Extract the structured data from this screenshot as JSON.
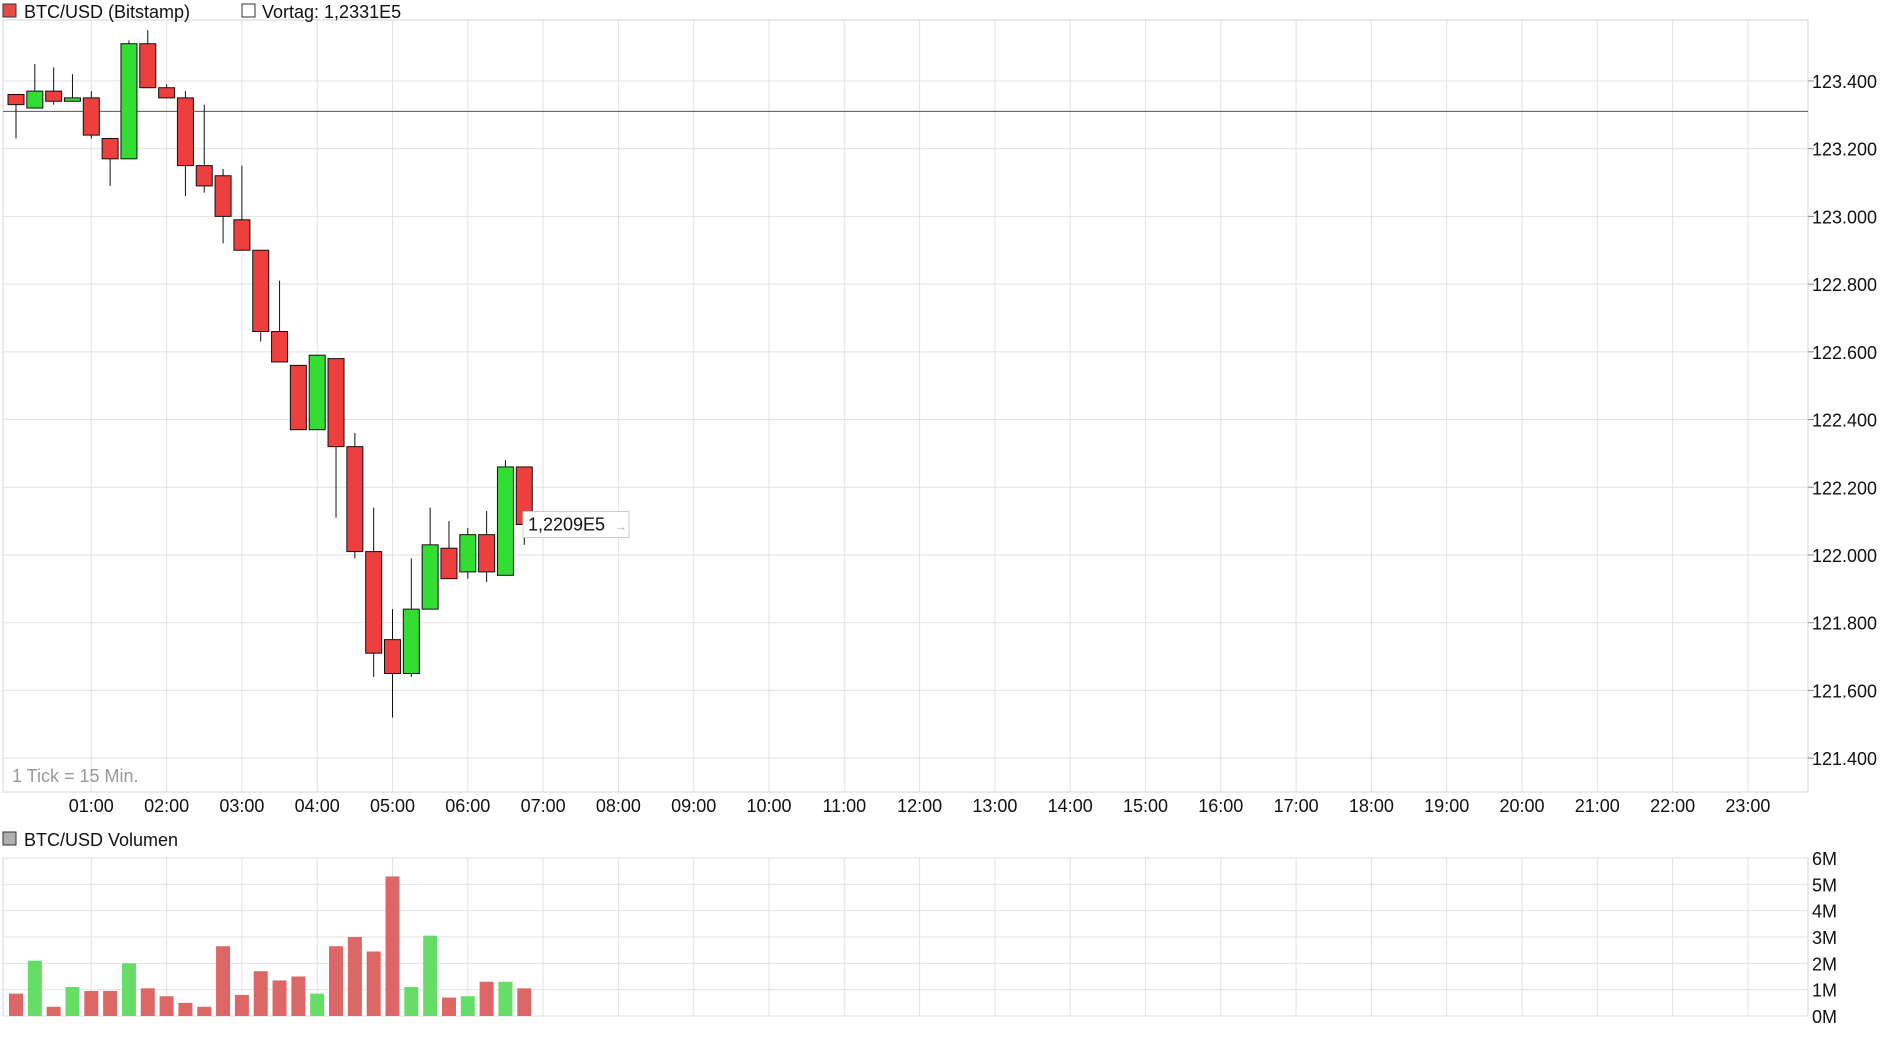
{
  "price_chart": {
    "legend_series": "BTC/USD (Bitstamp)",
    "legend_series_color": "#e84a4a",
    "legend_prev_close": "Vortag: 1,2331E5",
    "prev_close_value": 123310,
    "last_price_label": "1,2209E5",
    "last_price_value": 122090,
    "tick_note": "1 Tick = 15 Min."
  },
  "volume_chart": {
    "legend_label": "BTC/USD Volumen",
    "legend_color": "#b0b0b0"
  },
  "colors": {
    "up": "#33dd33",
    "down": "#ee3f3f",
    "vol_up": "#66dd66",
    "vol_down": "#dd6666",
    "grid": "#e2e2e2"
  },
  "chart_data": [
    {
      "type": "candlestick",
      "title": "",
      "interval": "15 min",
      "ylim": [
        121300,
        123580
      ],
      "y_ticks": [
        121400,
        121600,
        121800,
        122000,
        122200,
        122400,
        122600,
        122800,
        123000,
        123200,
        123400
      ],
      "y_tick_labels": [
        "121.400",
        "121.600",
        "121.800",
        "122.000",
        "122.200",
        "122.400",
        "122.600",
        "122.800",
        "123.000",
        "123.200",
        "123.400"
      ],
      "x_tick_labels": [
        "01:00",
        "02:00",
        "03:00",
        "04:00",
        "05:00",
        "06:00",
        "07:00",
        "08:00",
        "09:00",
        "10:00",
        "11:00",
        "12:00",
        "13:00",
        "14:00",
        "15:00",
        "16:00",
        "17:00",
        "18:00",
        "19:00",
        "20:00",
        "21:00",
        "22:00",
        "23:00"
      ],
      "x_start": "00:00",
      "x_end": "24:00",
      "candles": [
        {
          "t": "00:00",
          "open": 123360,
          "high": 123360,
          "low": 123230,
          "close": 123330
        },
        {
          "t": "00:15",
          "open": 123320,
          "high": 123450,
          "low": 123320,
          "close": 123370
        },
        {
          "t": "00:30",
          "open": 123370,
          "high": 123440,
          "low": 123330,
          "close": 123340
        },
        {
          "t": "00:45",
          "open": 123340,
          "high": 123420,
          "low": 123340,
          "close": 123350
        },
        {
          "t": "01:00",
          "open": 123350,
          "high": 123370,
          "low": 123230,
          "close": 123240
        },
        {
          "t": "01:15",
          "open": 123230,
          "high": 123230,
          "low": 123090,
          "close": 123170
        },
        {
          "t": "01:30",
          "open": 123170,
          "high": 123520,
          "low": 123170,
          "close": 123510
        },
        {
          "t": "01:45",
          "open": 123510,
          "high": 123550,
          "low": 123380,
          "close": 123380
        },
        {
          "t": "02:00",
          "open": 123380,
          "high": 123390,
          "low": 123350,
          "close": 123350
        },
        {
          "t": "02:15",
          "open": 123350,
          "high": 123370,
          "low": 123060,
          "close": 123150
        },
        {
          "t": "02:30",
          "open": 123150,
          "high": 123330,
          "low": 123070,
          "close": 123090
        },
        {
          "t": "02:45",
          "open": 123120,
          "high": 123140,
          "low": 122920,
          "close": 123000
        },
        {
          "t": "03:00",
          "open": 122990,
          "high": 123150,
          "low": 122900,
          "close": 122900
        },
        {
          "t": "03:15",
          "open": 122900,
          "high": 122900,
          "low": 122630,
          "close": 122660
        },
        {
          "t": "03:30",
          "open": 122660,
          "high": 122810,
          "low": 122570,
          "close": 122570
        },
        {
          "t": "03:45",
          "open": 122560,
          "high": 122560,
          "low": 122370,
          "close": 122370
        },
        {
          "t": "04:00",
          "open": 122370,
          "high": 122590,
          "low": 122370,
          "close": 122590
        },
        {
          "t": "04:15",
          "open": 122580,
          "high": 122580,
          "low": 122110,
          "close": 122320
        },
        {
          "t": "04:30",
          "open": 122320,
          "high": 122360,
          "low": 121990,
          "close": 122010
        },
        {
          "t": "04:45",
          "open": 122010,
          "high": 122140,
          "low": 121640,
          "close": 121710
        },
        {
          "t": "05:00",
          "open": 121750,
          "high": 121840,
          "low": 121520,
          "close": 121650
        },
        {
          "t": "05:15",
          "open": 121650,
          "high": 121990,
          "low": 121640,
          "close": 121840
        },
        {
          "t": "05:30",
          "open": 121840,
          "high": 122140,
          "low": 121840,
          "close": 122030
        },
        {
          "t": "05:45",
          "open": 122020,
          "high": 122100,
          "low": 121930,
          "close": 121930
        },
        {
          "t": "06:00",
          "open": 121950,
          "high": 122080,
          "low": 121930,
          "close": 122060
        },
        {
          "t": "06:15",
          "open": 122060,
          "high": 122130,
          "low": 121920,
          "close": 121950
        },
        {
          "t": "06:30",
          "open": 121940,
          "high": 122280,
          "low": 121940,
          "close": 122260
        },
        {
          "t": "06:45",
          "open": 122260,
          "high": 122260,
          "low": 122030,
          "close": 122090
        }
      ]
    },
    {
      "type": "bar",
      "title": "",
      "ylim": [
        0,
        6000000
      ],
      "y_ticks": [
        0,
        1000000,
        2000000,
        3000000,
        4000000,
        5000000,
        6000000
      ],
      "y_tick_labels": [
        "0M",
        "1M",
        "2M",
        "3M",
        "4M",
        "5M",
        "6M"
      ],
      "volumes": [
        0.85,
        2.1,
        0.35,
        1.1,
        0.95,
        0.95,
        2.0,
        1.05,
        0.75,
        0.5,
        0.35,
        2.65,
        0.8,
        1.7,
        1.35,
        1.5,
        0.85,
        2.65,
        3.0,
        2.45,
        5.3,
        1.1,
        3.05,
        0.7,
        0.75,
        1.3,
        1.3,
        1.05
      ],
      "volume_unit": "M",
      "directions": [
        "down",
        "up",
        "down",
        "up",
        "down",
        "down",
        "up",
        "down",
        "down",
        "down",
        "down",
        "down",
        "down",
        "down",
        "down",
        "down",
        "up",
        "down",
        "down",
        "down",
        "down",
        "up",
        "up",
        "down",
        "up",
        "down",
        "up",
        "down"
      ]
    }
  ]
}
